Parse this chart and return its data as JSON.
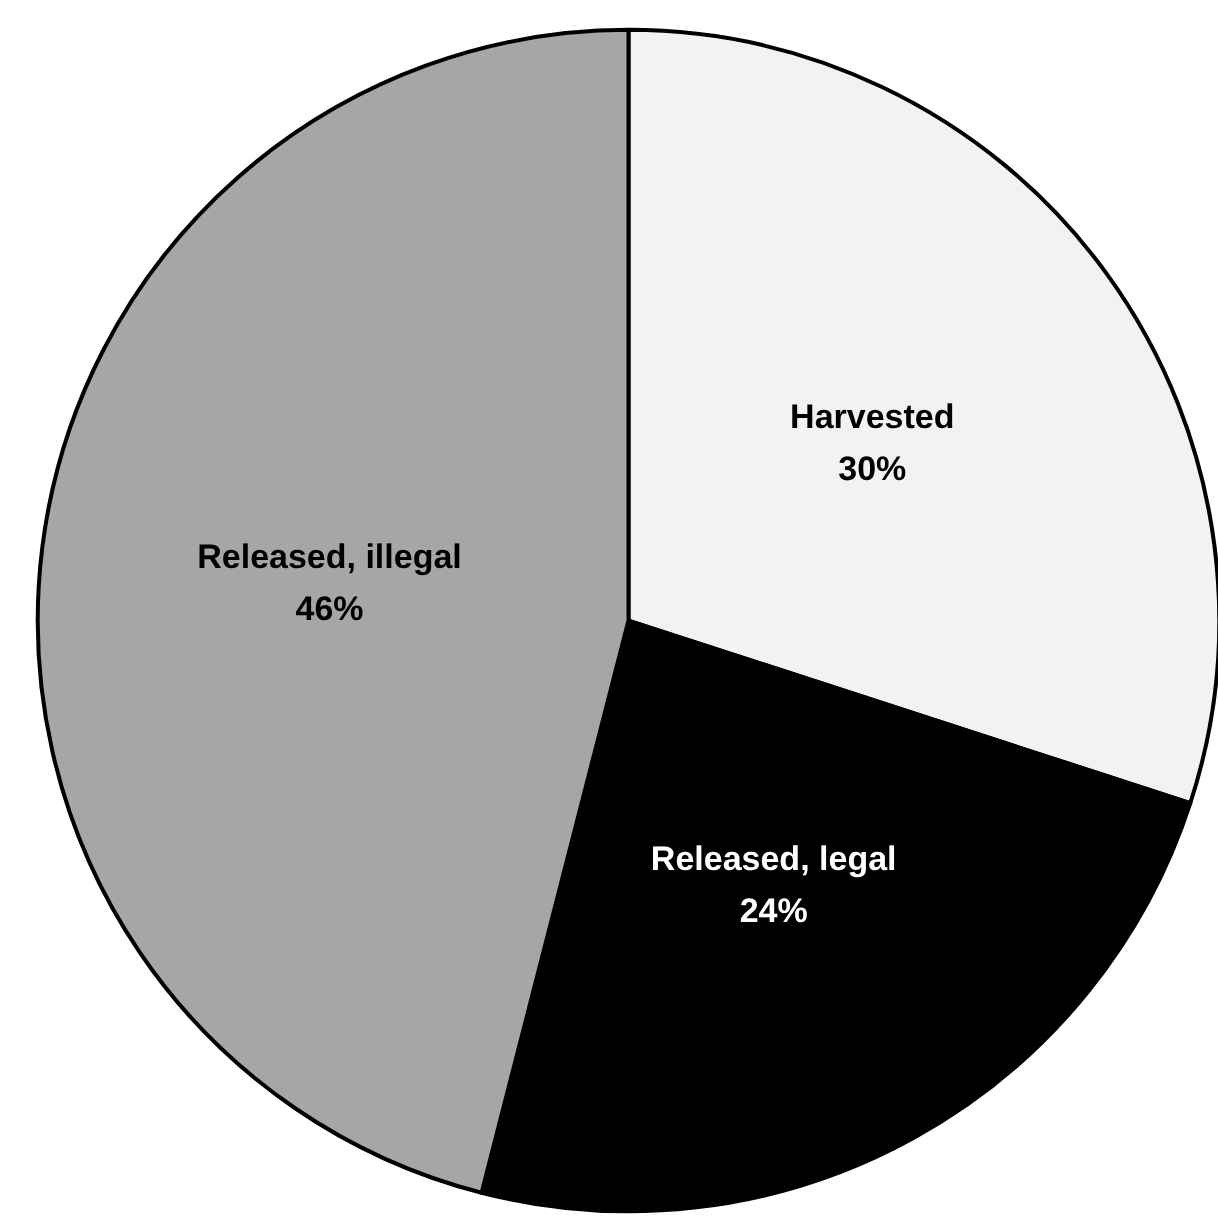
{
  "chart_data": {
    "type": "pie",
    "categories": [
      "Harvested",
      "Released, legal",
      "Released, illegal"
    ],
    "values": [
      30,
      24,
      46
    ],
    "value_labels": [
      "30%",
      "24%",
      "46%"
    ],
    "colors": [
      "#f2f2f2",
      "#000000",
      "#a6a6a6"
    ],
    "legend": false
  }
}
